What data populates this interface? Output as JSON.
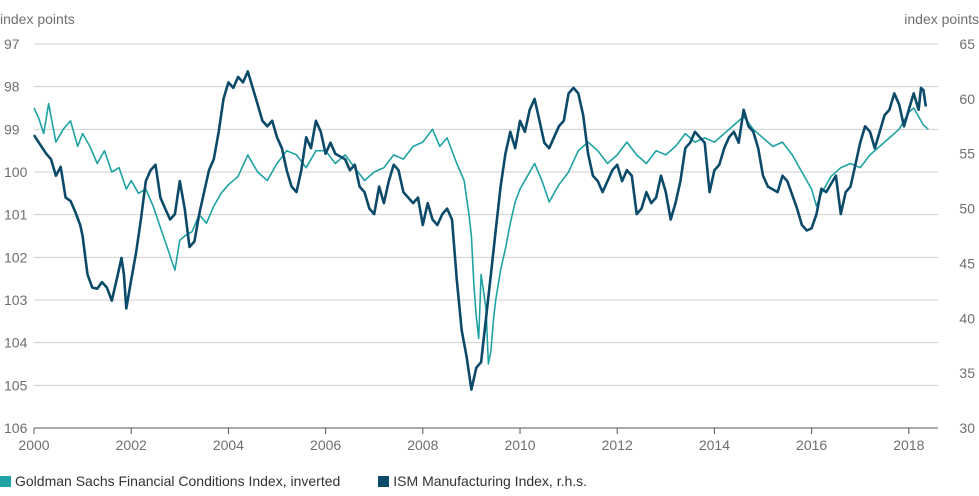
{
  "chart_data": {
    "type": "line",
    "y_unit_left": "index points",
    "y_unit_right": "index points",
    "xlim": [
      2000,
      2018.6
    ],
    "x_ticks": [
      "2000",
      "2002",
      "2004",
      "2006",
      "2008",
      "2010",
      "2012",
      "2014",
      "2016",
      "2018"
    ],
    "ylim_left": [
      97,
      106
    ],
    "y_left_inverted": true,
    "y_ticks_left": [
      "97",
      "98",
      "99",
      "100",
      "101",
      "102",
      "103",
      "104",
      "105",
      "106"
    ],
    "ylim_right": [
      30,
      65
    ],
    "y_ticks_right": [
      "65",
      "60",
      "55",
      "50",
      "45",
      "40",
      "35",
      "30"
    ],
    "grid": "horizontal",
    "legend_position": "bottom",
    "series": [
      {
        "name": "Goldman Sachs Financial Conditions Index, inverted",
        "axis": "left",
        "color": "#1fa2a4",
        "points": [
          [
            2000.0,
            98.5
          ],
          [
            2000.1,
            98.75
          ],
          [
            2000.2,
            99.1
          ],
          [
            2000.3,
            98.4
          ],
          [
            2000.45,
            99.3
          ],
          [
            2000.6,
            99.0
          ],
          [
            2000.75,
            98.8
          ],
          [
            2000.9,
            99.4
          ],
          [
            2001.0,
            99.1
          ],
          [
            2001.15,
            99.4
          ],
          [
            2001.3,
            99.8
          ],
          [
            2001.45,
            99.5
          ],
          [
            2001.6,
            100.0
          ],
          [
            2001.75,
            99.9
          ],
          [
            2001.9,
            100.4
          ],
          [
            2002.0,
            100.2
          ],
          [
            2002.15,
            100.5
          ],
          [
            2002.3,
            100.4
          ],
          [
            2002.45,
            100.8
          ],
          [
            2002.6,
            101.3
          ],
          [
            2002.75,
            101.8
          ],
          [
            2002.9,
            102.3
          ],
          [
            2003.0,
            101.6
          ],
          [
            2003.1,
            101.5
          ],
          [
            2003.25,
            101.4
          ],
          [
            2003.4,
            101.0
          ],
          [
            2003.55,
            101.2
          ],
          [
            2003.7,
            100.8
          ],
          [
            2003.85,
            100.5
          ],
          [
            2004.0,
            100.3
          ],
          [
            2004.2,
            100.1
          ],
          [
            2004.4,
            99.6
          ],
          [
            2004.6,
            100.0
          ],
          [
            2004.8,
            100.2
          ],
          [
            2005.0,
            99.8
          ],
          [
            2005.2,
            99.5
          ],
          [
            2005.4,
            99.6
          ],
          [
            2005.6,
            99.9
          ],
          [
            2005.8,
            99.5
          ],
          [
            2006.0,
            99.5
          ],
          [
            2006.2,
            99.8
          ],
          [
            2006.4,
            99.6
          ],
          [
            2006.6,
            99.9
          ],
          [
            2006.8,
            100.2
          ],
          [
            2007.0,
            100.0
          ],
          [
            2007.2,
            99.9
          ],
          [
            2007.4,
            99.6
          ],
          [
            2007.6,
            99.7
          ],
          [
            2007.8,
            99.4
          ],
          [
            2008.0,
            99.3
          ],
          [
            2008.2,
            99.0
          ],
          [
            2008.35,
            99.4
          ],
          [
            2008.5,
            99.2
          ],
          [
            2008.7,
            99.8
          ],
          [
            2008.85,
            100.2
          ],
          [
            2008.95,
            101.0
          ],
          [
            2009.0,
            101.5
          ],
          [
            2009.05,
            102.6
          ],
          [
            2009.1,
            103.4
          ],
          [
            2009.15,
            103.9
          ],
          [
            2009.2,
            102.4
          ],
          [
            2009.3,
            103.2
          ],
          [
            2009.35,
            104.5
          ],
          [
            2009.4,
            104.2
          ],
          [
            2009.45,
            103.5
          ],
          [
            2009.5,
            103.0
          ],
          [
            2009.6,
            102.3
          ],
          [
            2009.7,
            101.8
          ],
          [
            2009.8,
            101.2
          ],
          [
            2009.9,
            100.7
          ],
          [
            2010.0,
            100.4
          ],
          [
            2010.15,
            100.1
          ],
          [
            2010.3,
            99.8
          ],
          [
            2010.45,
            100.2
          ],
          [
            2010.6,
            100.7
          ],
          [
            2010.8,
            100.3
          ],
          [
            2011.0,
            100.0
          ],
          [
            2011.2,
            99.5
          ],
          [
            2011.4,
            99.3
          ],
          [
            2011.6,
            99.5
          ],
          [
            2011.8,
            99.8
          ],
          [
            2012.0,
            99.6
          ],
          [
            2012.2,
            99.3
          ],
          [
            2012.4,
            99.6
          ],
          [
            2012.6,
            99.8
          ],
          [
            2012.8,
            99.5
          ],
          [
            2013.0,
            99.6
          ],
          [
            2013.2,
            99.4
          ],
          [
            2013.4,
            99.1
          ],
          [
            2013.6,
            99.3
          ],
          [
            2013.8,
            99.2
          ],
          [
            2014.0,
            99.3
          ],
          [
            2014.2,
            99.1
          ],
          [
            2014.4,
            98.9
          ],
          [
            2014.6,
            98.7
          ],
          [
            2014.8,
            99.0
          ],
          [
            2015.0,
            99.2
          ],
          [
            2015.2,
            99.4
          ],
          [
            2015.4,
            99.3
          ],
          [
            2015.6,
            99.6
          ],
          [
            2015.8,
            100.0
          ],
          [
            2016.0,
            100.4
          ],
          [
            2016.1,
            100.8
          ],
          [
            2016.2,
            100.5
          ],
          [
            2016.4,
            100.1
          ],
          [
            2016.6,
            99.9
          ],
          [
            2016.8,
            99.8
          ],
          [
            2017.0,
            99.9
          ],
          [
            2017.2,
            99.6
          ],
          [
            2017.4,
            99.4
          ],
          [
            2017.6,
            99.2
          ],
          [
            2017.8,
            99.0
          ],
          [
            2018.0,
            98.6
          ],
          [
            2018.1,
            98.5
          ],
          [
            2018.2,
            98.7
          ],
          [
            2018.3,
            98.9
          ],
          [
            2018.4,
            99.0
          ]
        ]
      },
      {
        "name": "ISM Manufacturing Index, r.h.s.",
        "axis": "right",
        "color": "#0c4a69",
        "points": [
          [
            2000.0,
            56.7
          ],
          [
            2000.1,
            56.0
          ],
          [
            2000.25,
            55.0
          ],
          [
            2000.35,
            54.5
          ],
          [
            2000.45,
            53.0
          ],
          [
            2000.55,
            53.8
          ],
          [
            2000.65,
            51.0
          ],
          [
            2000.75,
            50.7
          ],
          [
            2000.85,
            49.7
          ],
          [
            2000.95,
            48.5
          ],
          [
            2001.0,
            47.5
          ],
          [
            2001.1,
            44.0
          ],
          [
            2001.2,
            42.8
          ],
          [
            2001.3,
            42.7
          ],
          [
            2001.4,
            43.3
          ],
          [
            2001.5,
            42.8
          ],
          [
            2001.6,
            41.6
          ],
          [
            2001.7,
            43.5
          ],
          [
            2001.8,
            45.5
          ],
          [
            2001.85,
            44.0
          ],
          [
            2001.9,
            40.9
          ],
          [
            2002.0,
            43.5
          ],
          [
            2002.1,
            46.0
          ],
          [
            2002.2,
            49.0
          ],
          [
            2002.3,
            52.5
          ],
          [
            2002.4,
            53.5
          ],
          [
            2002.5,
            54.0
          ],
          [
            2002.6,
            51.0
          ],
          [
            2002.7,
            50.0
          ],
          [
            2002.8,
            49.0
          ],
          [
            2002.9,
            49.5
          ],
          [
            2003.0,
            52.5
          ],
          [
            2003.1,
            50.0
          ],
          [
            2003.2,
            46.5
          ],
          [
            2003.3,
            47.0
          ],
          [
            2003.4,
            49.5
          ],
          [
            2003.5,
            51.5
          ],
          [
            2003.6,
            53.5
          ],
          [
            2003.7,
            54.5
          ],
          [
            2003.8,
            57.0
          ],
          [
            2003.9,
            60.0
          ],
          [
            2004.0,
            61.5
          ],
          [
            2004.1,
            61.0
          ],
          [
            2004.2,
            62.0
          ],
          [
            2004.3,
            61.5
          ],
          [
            2004.4,
            62.5
          ],
          [
            2004.5,
            61.0
          ],
          [
            2004.6,
            59.5
          ],
          [
            2004.7,
            58.0
          ],
          [
            2004.8,
            57.5
          ],
          [
            2004.9,
            58.0
          ],
          [
            2005.0,
            56.5
          ],
          [
            2005.1,
            55.5
          ],
          [
            2005.2,
            53.5
          ],
          [
            2005.3,
            52.0
          ],
          [
            2005.4,
            51.5
          ],
          [
            2005.5,
            53.5
          ],
          [
            2005.6,
            56.5
          ],
          [
            2005.7,
            55.5
          ],
          [
            2005.8,
            58.0
          ],
          [
            2005.9,
            57.0
          ],
          [
            2006.0,
            55.0
          ],
          [
            2006.1,
            56.0
          ],
          [
            2006.2,
            55.0
          ],
          [
            2006.4,
            54.5
          ],
          [
            2006.5,
            53.5
          ],
          [
            2006.6,
            54.0
          ],
          [
            2006.7,
            52.0
          ],
          [
            2006.8,
            51.5
          ],
          [
            2006.9,
            50.0
          ],
          [
            2007.0,
            49.5
          ],
          [
            2007.1,
            52.0
          ],
          [
            2007.2,
            50.5
          ],
          [
            2007.3,
            52.5
          ],
          [
            2007.4,
            54.0
          ],
          [
            2007.5,
            53.5
          ],
          [
            2007.6,
            51.5
          ],
          [
            2007.8,
            50.5
          ],
          [
            2007.9,
            51.0
          ],
          [
            2008.0,
            48.5
          ],
          [
            2008.1,
            50.5
          ],
          [
            2008.2,
            49.0
          ],
          [
            2008.3,
            48.5
          ],
          [
            2008.4,
            49.5
          ],
          [
            2008.5,
            50.0
          ],
          [
            2008.6,
            49.0
          ],
          [
            2008.7,
            43.5
          ],
          [
            2008.8,
            38.9
          ],
          [
            2008.9,
            36.5
          ],
          [
            2009.0,
            33.5
          ],
          [
            2009.1,
            35.5
          ],
          [
            2009.2,
            36.0
          ],
          [
            2009.3,
            40.0
          ],
          [
            2009.4,
            44.0
          ],
          [
            2009.5,
            48.0
          ],
          [
            2009.6,
            52.0
          ],
          [
            2009.7,
            55.0
          ],
          [
            2009.8,
            57.0
          ],
          [
            2009.9,
            55.5
          ],
          [
            2010.0,
            58.0
          ],
          [
            2010.1,
            57.0
          ],
          [
            2010.2,
            59.0
          ],
          [
            2010.3,
            60.0
          ],
          [
            2010.4,
            58.0
          ],
          [
            2010.5,
            56.0
          ],
          [
            2010.6,
            55.5
          ],
          [
            2010.7,
            56.5
          ],
          [
            2010.8,
            57.5
          ],
          [
            2010.9,
            58.0
          ],
          [
            2011.0,
            60.5
          ],
          [
            2011.1,
            61.0
          ],
          [
            2011.2,
            60.5
          ],
          [
            2011.3,
            58.5
          ],
          [
            2011.4,
            55.0
          ],
          [
            2011.5,
            53.0
          ],
          [
            2011.6,
            52.5
          ],
          [
            2011.7,
            51.5
          ],
          [
            2011.8,
            52.5
          ],
          [
            2011.9,
            53.5
          ],
          [
            2012.0,
            54.0
          ],
          [
            2012.1,
            52.5
          ],
          [
            2012.2,
            53.5
          ],
          [
            2012.3,
            53.0
          ],
          [
            2012.4,
            49.5
          ],
          [
            2012.5,
            50.0
          ],
          [
            2012.6,
            51.5
          ],
          [
            2012.7,
            50.5
          ],
          [
            2012.8,
            51.0
          ],
          [
            2012.9,
            53.0
          ],
          [
            2013.0,
            51.5
          ],
          [
            2013.1,
            49.0
          ],
          [
            2013.2,
            50.5
          ],
          [
            2013.3,
            52.5
          ],
          [
            2013.4,
            55.5
          ],
          [
            2013.5,
            56.0
          ],
          [
            2013.6,
            57.0
          ],
          [
            2013.7,
            56.5
          ],
          [
            2013.8,
            56.0
          ],
          [
            2013.9,
            51.5
          ],
          [
            2014.0,
            53.5
          ],
          [
            2014.1,
            54.0
          ],
          [
            2014.2,
            55.5
          ],
          [
            2014.3,
            56.5
          ],
          [
            2014.4,
            57.0
          ],
          [
            2014.5,
            56.0
          ],
          [
            2014.6,
            59.0
          ],
          [
            2014.7,
            57.5
          ],
          [
            2014.8,
            57.0
          ],
          [
            2014.9,
            55.5
          ],
          [
            2015.0,
            53.0
          ],
          [
            2015.1,
            52.0
          ],
          [
            2015.3,
            51.5
          ],
          [
            2015.4,
            53.0
          ],
          [
            2015.5,
            52.5
          ],
          [
            2015.7,
            50.0
          ],
          [
            2015.8,
            48.5
          ],
          [
            2015.9,
            48.0
          ],
          [
            2016.0,
            48.2
          ],
          [
            2016.1,
            49.5
          ],
          [
            2016.2,
            51.8
          ],
          [
            2016.3,
            51.5
          ],
          [
            2016.5,
            53.0
          ],
          [
            2016.6,
            49.5
          ],
          [
            2016.7,
            51.5
          ],
          [
            2016.8,
            52.0
          ],
          [
            2016.9,
            54.0
          ],
          [
            2017.0,
            56.0
          ],
          [
            2017.1,
            57.5
          ],
          [
            2017.2,
            57.0
          ],
          [
            2017.3,
            55.5
          ],
          [
            2017.4,
            57.0
          ],
          [
            2017.5,
            58.5
          ],
          [
            2017.6,
            59.0
          ],
          [
            2017.7,
            60.5
          ],
          [
            2017.8,
            59.5
          ],
          [
            2017.9,
            57.5
          ],
          [
            2018.0,
            59.0
          ],
          [
            2018.1,
            60.5
          ],
          [
            2018.2,
            59.0
          ],
          [
            2018.25,
            61.0
          ],
          [
            2018.3,
            60.8
          ],
          [
            2018.35,
            59.3
          ]
        ]
      }
    ]
  }
}
